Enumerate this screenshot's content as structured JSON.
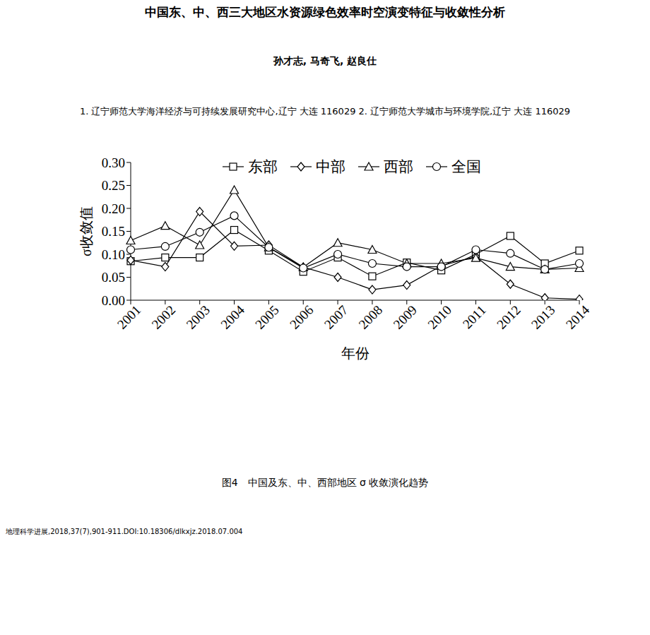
{
  "title": "中国东、中、西三大地区水资源绿色效率时空演变特征与收敛性分析",
  "authors": "孙才志, 马奇飞, 赵良仕",
  "affiliations": "1. 辽宁师范大学海洋经济与可持续发展研究中心,辽宁 大连 116029 2. 辽宁师范大学城市与环境学院,辽宁 大连 116029",
  "chart_data": {
    "type": "line",
    "x_label": "年份",
    "y_label": "σ收敛值",
    "categories": [
      "2001",
      "2002",
      "2003",
      "2004",
      "2005",
      "2006",
      "2007",
      "2008",
      "2009",
      "2010",
      "2011",
      "2012",
      "2013",
      "2014"
    ],
    "series": [
      {
        "name": "东部",
        "color": "#000000",
        "marker": "square",
        "values": [
          0.085,
          0.093,
          0.093,
          0.153,
          0.108,
          0.062,
          0.093,
          0.052,
          0.082,
          0.065,
          0.1,
          0.14,
          0.08,
          0.108
        ]
      },
      {
        "name": "中部",
        "color": "#000000",
        "marker": "diamond",
        "values": [
          0.087,
          0.073,
          0.193,
          0.118,
          0.12,
          0.072,
          0.05,
          0.023,
          0.033,
          0.075,
          0.095,
          0.035,
          0.005,
          0.002
        ]
      },
      {
        "name": "西部",
        "color": "#000000",
        "marker": "triangle",
        "values": [
          0.13,
          0.162,
          0.12,
          0.24,
          0.115,
          0.072,
          0.125,
          0.11,
          0.08,
          0.08,
          0.092,
          0.073,
          0.067,
          0.07
        ]
      },
      {
        "name": "全国",
        "color": "#000000",
        "marker": "circle",
        "values": [
          0.11,
          0.117,
          0.148,
          0.184,
          0.115,
          0.07,
          0.1,
          0.08,
          0.073,
          0.073,
          0.11,
          0.102,
          0.067,
          0.08
        ]
      }
    ],
    "ylim": [
      0,
      0.3
    ],
    "yticks": [
      {
        "value": 0,
        "label": "0.00"
      },
      0.05,
      {
        "value": 0.1,
        "label": "0.10"
      },
      0.15,
      {
        "value": 0.2,
        "label": "0.20"
      },
      0.25,
      {
        "value": 0.3,
        "label": "0.30"
      }
    ],
    "grid": false,
    "legend": "top"
  },
  "caption": "图4　中国及东、中、西部地区 σ 收敛演化趋势",
  "citation": "地理科学进展,2018,37(7),901-911.DOI:10.18306/dlkxjz.2018.07.004"
}
